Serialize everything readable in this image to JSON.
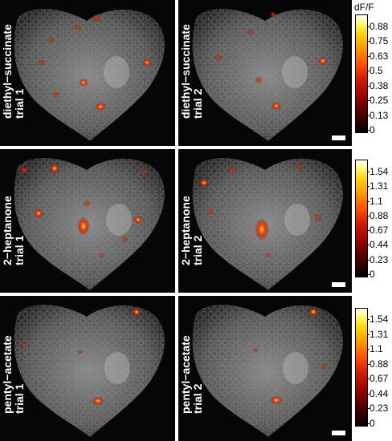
{
  "colorbar_title": "dF/F",
  "rows": [
    {
      "label_line1": "diethyl−succinate",
      "left_label_line2": "trial 1",
      "right_label_line2": "trial 2",
      "ticks": [
        "0.88",
        "0.75",
        "0.63",
        "0.5",
        "0.38",
        "0.25",
        "0.13",
        "0"
      ]
    },
    {
      "label_line1": "2−heptanone",
      "left_label_line2": "trial 1",
      "right_label_line2": "trial 2",
      "ticks": [
        "1.54",
        "1.31",
        "1.1",
        "0.88",
        "0.67",
        "0.44",
        "0.23",
        "0"
      ]
    },
    {
      "label_line1": "pentyl−acetate",
      "left_label_line2": "trial 1",
      "right_label_line2": "trial 2",
      "ticks": [
        "1.54",
        "1.31",
        "1.1",
        "0.88",
        "0.67",
        "0.44",
        "0.23",
        "0"
      ]
    }
  ],
  "colors": {
    "background": "#060606",
    "tissue": "#5a5a5a",
    "hot_low": "#8a0000",
    "hot_mid": "#ff3a00",
    "hot_high": "#ffe040"
  }
}
